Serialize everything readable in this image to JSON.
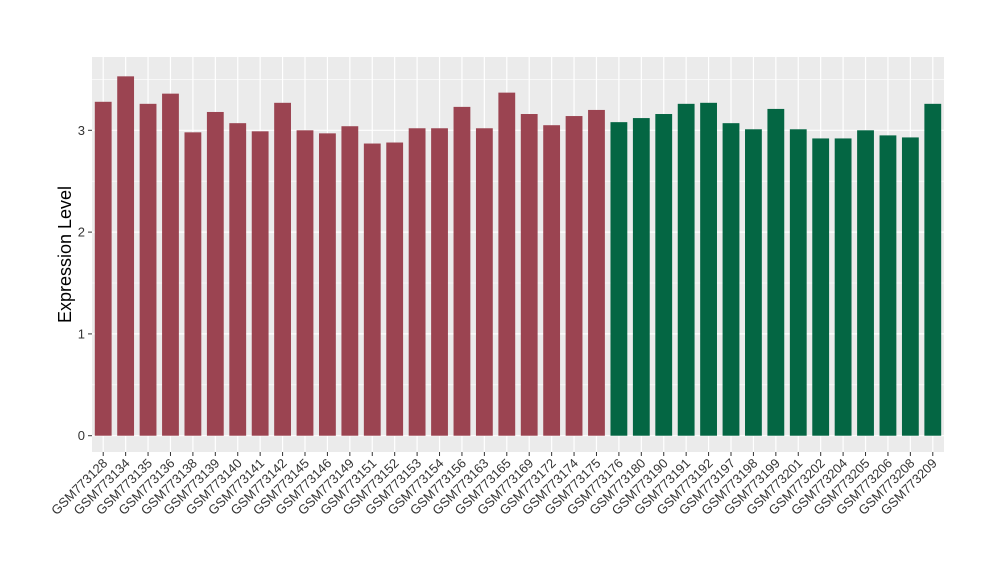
{
  "chart_data": {
    "type": "bar",
    "title": "",
    "xlabel": "",
    "ylabel": "Expression Level",
    "ylim": [
      -0.16,
      3.72
    ],
    "yticks": [
      0,
      1,
      2,
      3
    ],
    "grid": true,
    "legend": "none",
    "colors": {
      "group1": "#9b4451",
      "group2": "#046643",
      "panel": "#ebebeb",
      "grid": "#ffffff"
    },
    "categories": [
      "GSM773128",
      "GSM773134",
      "GSM773135",
      "GSM773136",
      "GSM773138",
      "GSM773139",
      "GSM773140",
      "GSM773141",
      "GSM773142",
      "GSM773145",
      "GSM773146",
      "GSM773149",
      "GSM773151",
      "GSM773152",
      "GSM773153",
      "GSM773154",
      "GSM773156",
      "GSM773163",
      "GSM773165",
      "GSM773169",
      "GSM773172",
      "GSM773174",
      "GSM773175",
      "GSM773176",
      "GSM773180",
      "GSM773190",
      "GSM773191",
      "GSM773192",
      "GSM773197",
      "GSM773198",
      "GSM773199",
      "GSM773201",
      "GSM773202",
      "GSM773204",
      "GSM773205",
      "GSM773206",
      "GSM773208",
      "GSM773209"
    ],
    "values": [
      3.28,
      3.53,
      3.26,
      3.36,
      2.98,
      3.18,
      3.07,
      2.99,
      3.27,
      3.0,
      2.97,
      3.04,
      2.87,
      2.88,
      3.02,
      3.02,
      3.23,
      3.02,
      3.37,
      3.16,
      3.05,
      3.14,
      3.2,
      3.08,
      3.12,
      3.16,
      3.26,
      3.27,
      3.07,
      3.01,
      3.21,
      3.01,
      2.92,
      2.92,
      3.0,
      2.95,
      2.93,
      3.26
    ],
    "groups": [
      1,
      1,
      1,
      1,
      1,
      1,
      1,
      1,
      1,
      1,
      1,
      1,
      1,
      1,
      1,
      1,
      1,
      1,
      1,
      1,
      1,
      1,
      1,
      2,
      2,
      2,
      2,
      2,
      2,
      2,
      2,
      2,
      2,
      2,
      2,
      2,
      2,
      2
    ]
  }
}
